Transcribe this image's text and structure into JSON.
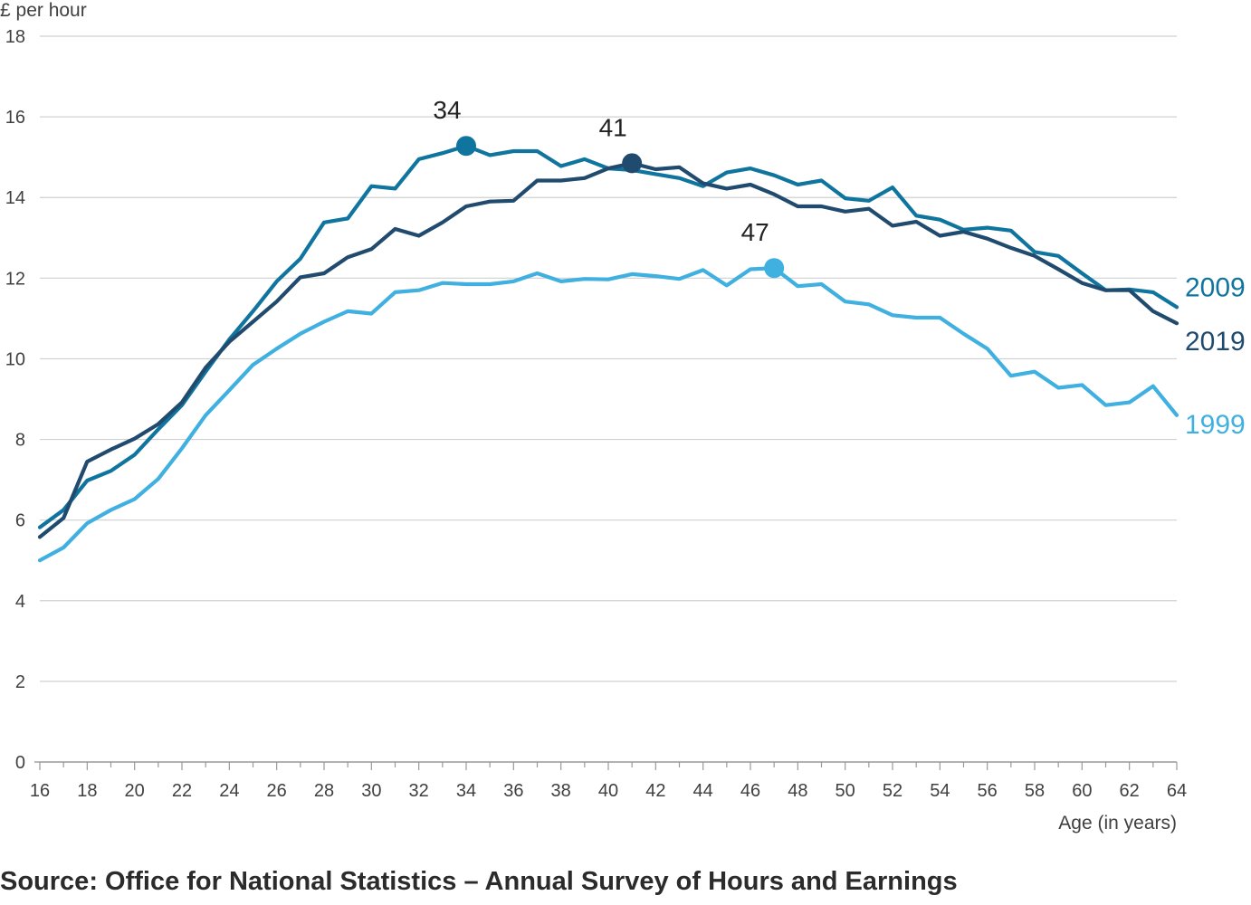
{
  "chart_data": {
    "type": "line",
    "ylabel": "£ per hour",
    "xlabel": "Age (in years)",
    "ylim": [
      0,
      18
    ],
    "xlim": [
      16,
      64
    ],
    "yticks": [
      0,
      2,
      4,
      6,
      8,
      10,
      12,
      14,
      16,
      18
    ],
    "xticks": [
      16,
      18,
      20,
      22,
      24,
      26,
      28,
      30,
      32,
      34,
      36,
      38,
      40,
      42,
      44,
      46,
      48,
      50,
      52,
      54,
      56,
      58,
      60,
      62,
      64
    ],
    "grid": true,
    "x": [
      16,
      17,
      18,
      19,
      20,
      21,
      22,
      23,
      24,
      25,
      26,
      27,
      28,
      29,
      30,
      31,
      32,
      33,
      34,
      35,
      36,
      37,
      38,
      39,
      40,
      41,
      42,
      43,
      44,
      45,
      46,
      47,
      48,
      49,
      50,
      51,
      52,
      53,
      54,
      55,
      56,
      57,
      58,
      59,
      60,
      61,
      62,
      63,
      64
    ],
    "series": [
      {
        "name": "2009",
        "color": "#0f759e",
        "peak_age": 34,
        "values": [
          5.82,
          6.25,
          6.98,
          7.22,
          7.62,
          8.25,
          8.85,
          9.68,
          10.48,
          11.18,
          11.92,
          12.48,
          13.38,
          13.48,
          14.28,
          14.22,
          14.95,
          15.1,
          15.28,
          15.05,
          15.15,
          15.15,
          14.78,
          14.95,
          14.72,
          14.68,
          14.58,
          14.48,
          14.28,
          14.62,
          14.72,
          14.55,
          14.32,
          14.42,
          13.98,
          13.92,
          14.25,
          13.55,
          13.45,
          13.2,
          13.25,
          13.18,
          12.65,
          12.55,
          12.12,
          11.7,
          11.72,
          11.65,
          11.28
        ]
      },
      {
        "name": "2019",
        "color": "#214b6e",
        "peak_age": 41,
        "values": [
          5.58,
          6.05,
          7.45,
          7.75,
          8.02,
          8.38,
          8.92,
          9.78,
          10.42,
          10.92,
          11.42,
          12.02,
          12.12,
          12.52,
          12.72,
          13.22,
          13.05,
          13.38,
          13.78,
          13.9,
          13.92,
          14.42,
          14.42,
          14.48,
          14.72,
          14.85,
          14.7,
          14.75,
          14.35,
          14.22,
          14.32,
          14.08,
          13.78,
          13.78,
          13.65,
          13.72,
          13.3,
          13.4,
          13.05,
          13.15,
          12.98,
          12.75,
          12.55,
          12.22,
          11.88,
          11.7,
          11.7,
          11.18,
          10.88
        ]
      },
      {
        "name": "1999",
        "color": "#3fb0e0",
        "peak_age": 47,
        "values": [
          5.0,
          5.32,
          5.92,
          6.25,
          6.52,
          7.02,
          7.78,
          8.6,
          9.22,
          9.85,
          10.25,
          10.62,
          10.92,
          11.18,
          11.12,
          11.65,
          11.7,
          11.88,
          11.85,
          11.85,
          11.92,
          12.12,
          11.92,
          11.98,
          11.97,
          12.1,
          12.05,
          11.98,
          12.2,
          11.82,
          12.22,
          12.25,
          11.8,
          11.85,
          11.42,
          11.35,
          11.08,
          11.02,
          11.02,
          10.62,
          10.25,
          9.58,
          9.68,
          9.28,
          9.35,
          8.85,
          8.92,
          9.32,
          8.6
        ]
      }
    ]
  },
  "source_text": "Source: Office for National Statistics – Annual Survey of Hours and Earnings"
}
